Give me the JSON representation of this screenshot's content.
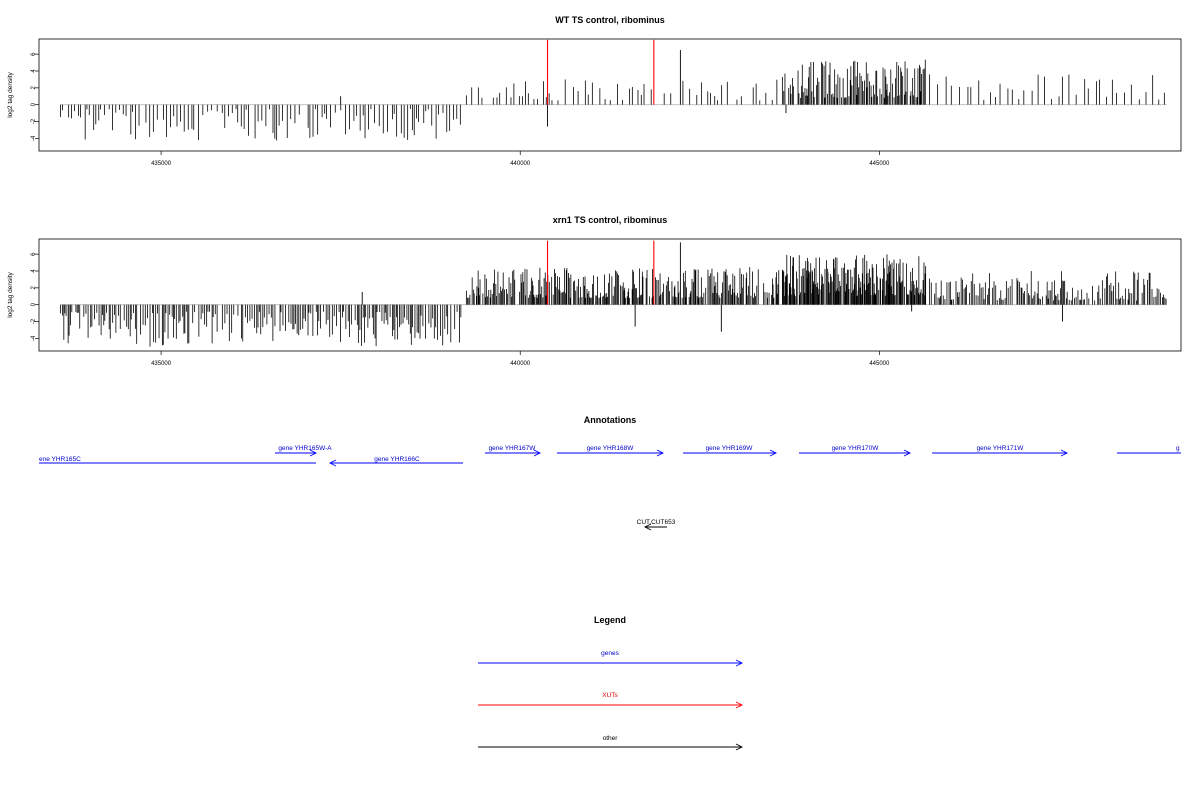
{
  "chart_data": [
    {
      "type": "bar",
      "title": "WT TS control, ribominus",
      "ylabel": "log2 tag density",
      "xlim": [
        433300,
        449200
      ],
      "ylim": [
        -5.5,
        7.8
      ],
      "x_ticks": [
        435000,
        440000,
        445000
      ],
      "x_tick_labels": [
        "435000",
        "440000",
        "445000"
      ],
      "y_ticks": [
        -4,
        -2,
        0,
        2,
        4,
        6
      ],
      "y_tick_labels": [
        "-4",
        "-2",
        "0",
        "2",
        "4",
        "6"
      ],
      "grid": false,
      "segments": [
        {
          "x_start": 433600,
          "x_end": 439200,
          "strand": "minus",
          "min": -4.3,
          "max": -0.5,
          "spacing": 45,
          "seed": 11
        },
        {
          "x_start": 439250,
          "x_end": 443600,
          "strand": "plus",
          "min": 0.5,
          "max": 3.0,
          "spacing": 70,
          "seed": 23
        },
        {
          "x_start": 443650,
          "x_end": 445650,
          "strand": "plus",
          "min": 0.8,
          "max": 5.5,
          "spacing": 16,
          "seed": 37
        },
        {
          "x_start": 445700,
          "x_end": 449000,
          "strand": "plus",
          "min": 0.5,
          "max": 3.6,
          "spacing": 80,
          "seed": 41
        }
      ],
      "extra_values": [
        {
          "x": 442230,
          "y": 6.5
        },
        {
          "x": 440380,
          "y": -2.6
        },
        {
          "x": 443700,
          "y": -1.0
        },
        {
          "x": 437500,
          "y": 1.0
        }
      ],
      "highlight_series": {
        "name": "XUTs",
        "color": "#ff0000",
        "x": [
          440380,
          441860
        ],
        "y": [
          7.7,
          7.7
        ]
      }
    },
    {
      "type": "bar",
      "title": "xrn1 TS control, ribominus",
      "ylabel": "log2 tag density",
      "xlim": [
        433300,
        449200
      ],
      "ylim": [
        -5.5,
        7.8
      ],
      "x_ticks": [
        435000,
        440000,
        445000
      ],
      "x_tick_labels": [
        "435000",
        "440000",
        "445000"
      ],
      "y_ticks": [
        -4,
        -2,
        0,
        2,
        4,
        6
      ],
      "y_tick_labels": [
        "-4",
        "-2",
        "0",
        "2",
        "4",
        "6"
      ],
      "grid": false,
      "segments": [
        {
          "x_start": 433600,
          "x_end": 439200,
          "strand": "minus",
          "min": -5.0,
          "max": -0.8,
          "spacing": 25,
          "seed": 53
        },
        {
          "x_start": 439250,
          "x_end": 443600,
          "strand": "plus",
          "min": 0.8,
          "max": 4.5,
          "spacing": 14,
          "seed": 67
        },
        {
          "x_start": 443650,
          "x_end": 445650,
          "strand": "plus",
          "min": 1.0,
          "max": 6.0,
          "spacing": 9,
          "seed": 71
        },
        {
          "x_start": 445700,
          "x_end": 449000,
          "strand": "plus",
          "min": 0.5,
          "max": 4.0,
          "spacing": 20,
          "seed": 83
        }
      ],
      "extra_values": [
        {
          "x": 442230,
          "y": 7.4
        },
        {
          "x": 442800,
          "y": -3.2
        },
        {
          "x": 441600,
          "y": -2.6
        },
        {
          "x": 447550,
          "y": -2.0
        },
        {
          "x": 437800,
          "y": 1.5
        },
        {
          "x": 445450,
          "y": -0.8
        }
      ],
      "highlight_series": {
        "name": "XUTs",
        "color": "#ff0000",
        "x": [
          440380,
          441860
        ],
        "y": [
          7.6,
          7.6
        ]
      }
    }
  ],
  "annotations": {
    "title": "Annotations",
    "genes": [
      {
        "label": "ene YHR165C",
        "strand": "-"
      },
      {
        "label": "gene YHR165W-A",
        "strand": "+"
      },
      {
        "label": "gene YHR166C",
        "strand": "-"
      },
      {
        "label": "gene YHR167W",
        "strand": "+"
      },
      {
        "label": "gene YHR168W",
        "strand": "+"
      },
      {
        "label": "gene YHR169W",
        "strand": "+"
      },
      {
        "label": "gene YHR170W",
        "strand": "+"
      },
      {
        "label": "gene YHR171W",
        "strand": "+"
      },
      {
        "label": "g",
        "strand": "+"
      }
    ],
    "other": [
      {
        "label": "CUT.CUT653",
        "strand": "-"
      }
    ]
  },
  "legend": {
    "title": "Legend",
    "items": [
      {
        "label": "genes",
        "color": "#0000ff"
      },
      {
        "label": "XUTs",
        "color": "#ff0000"
      },
      {
        "label": "other",
        "color": "#000000"
      }
    ]
  }
}
